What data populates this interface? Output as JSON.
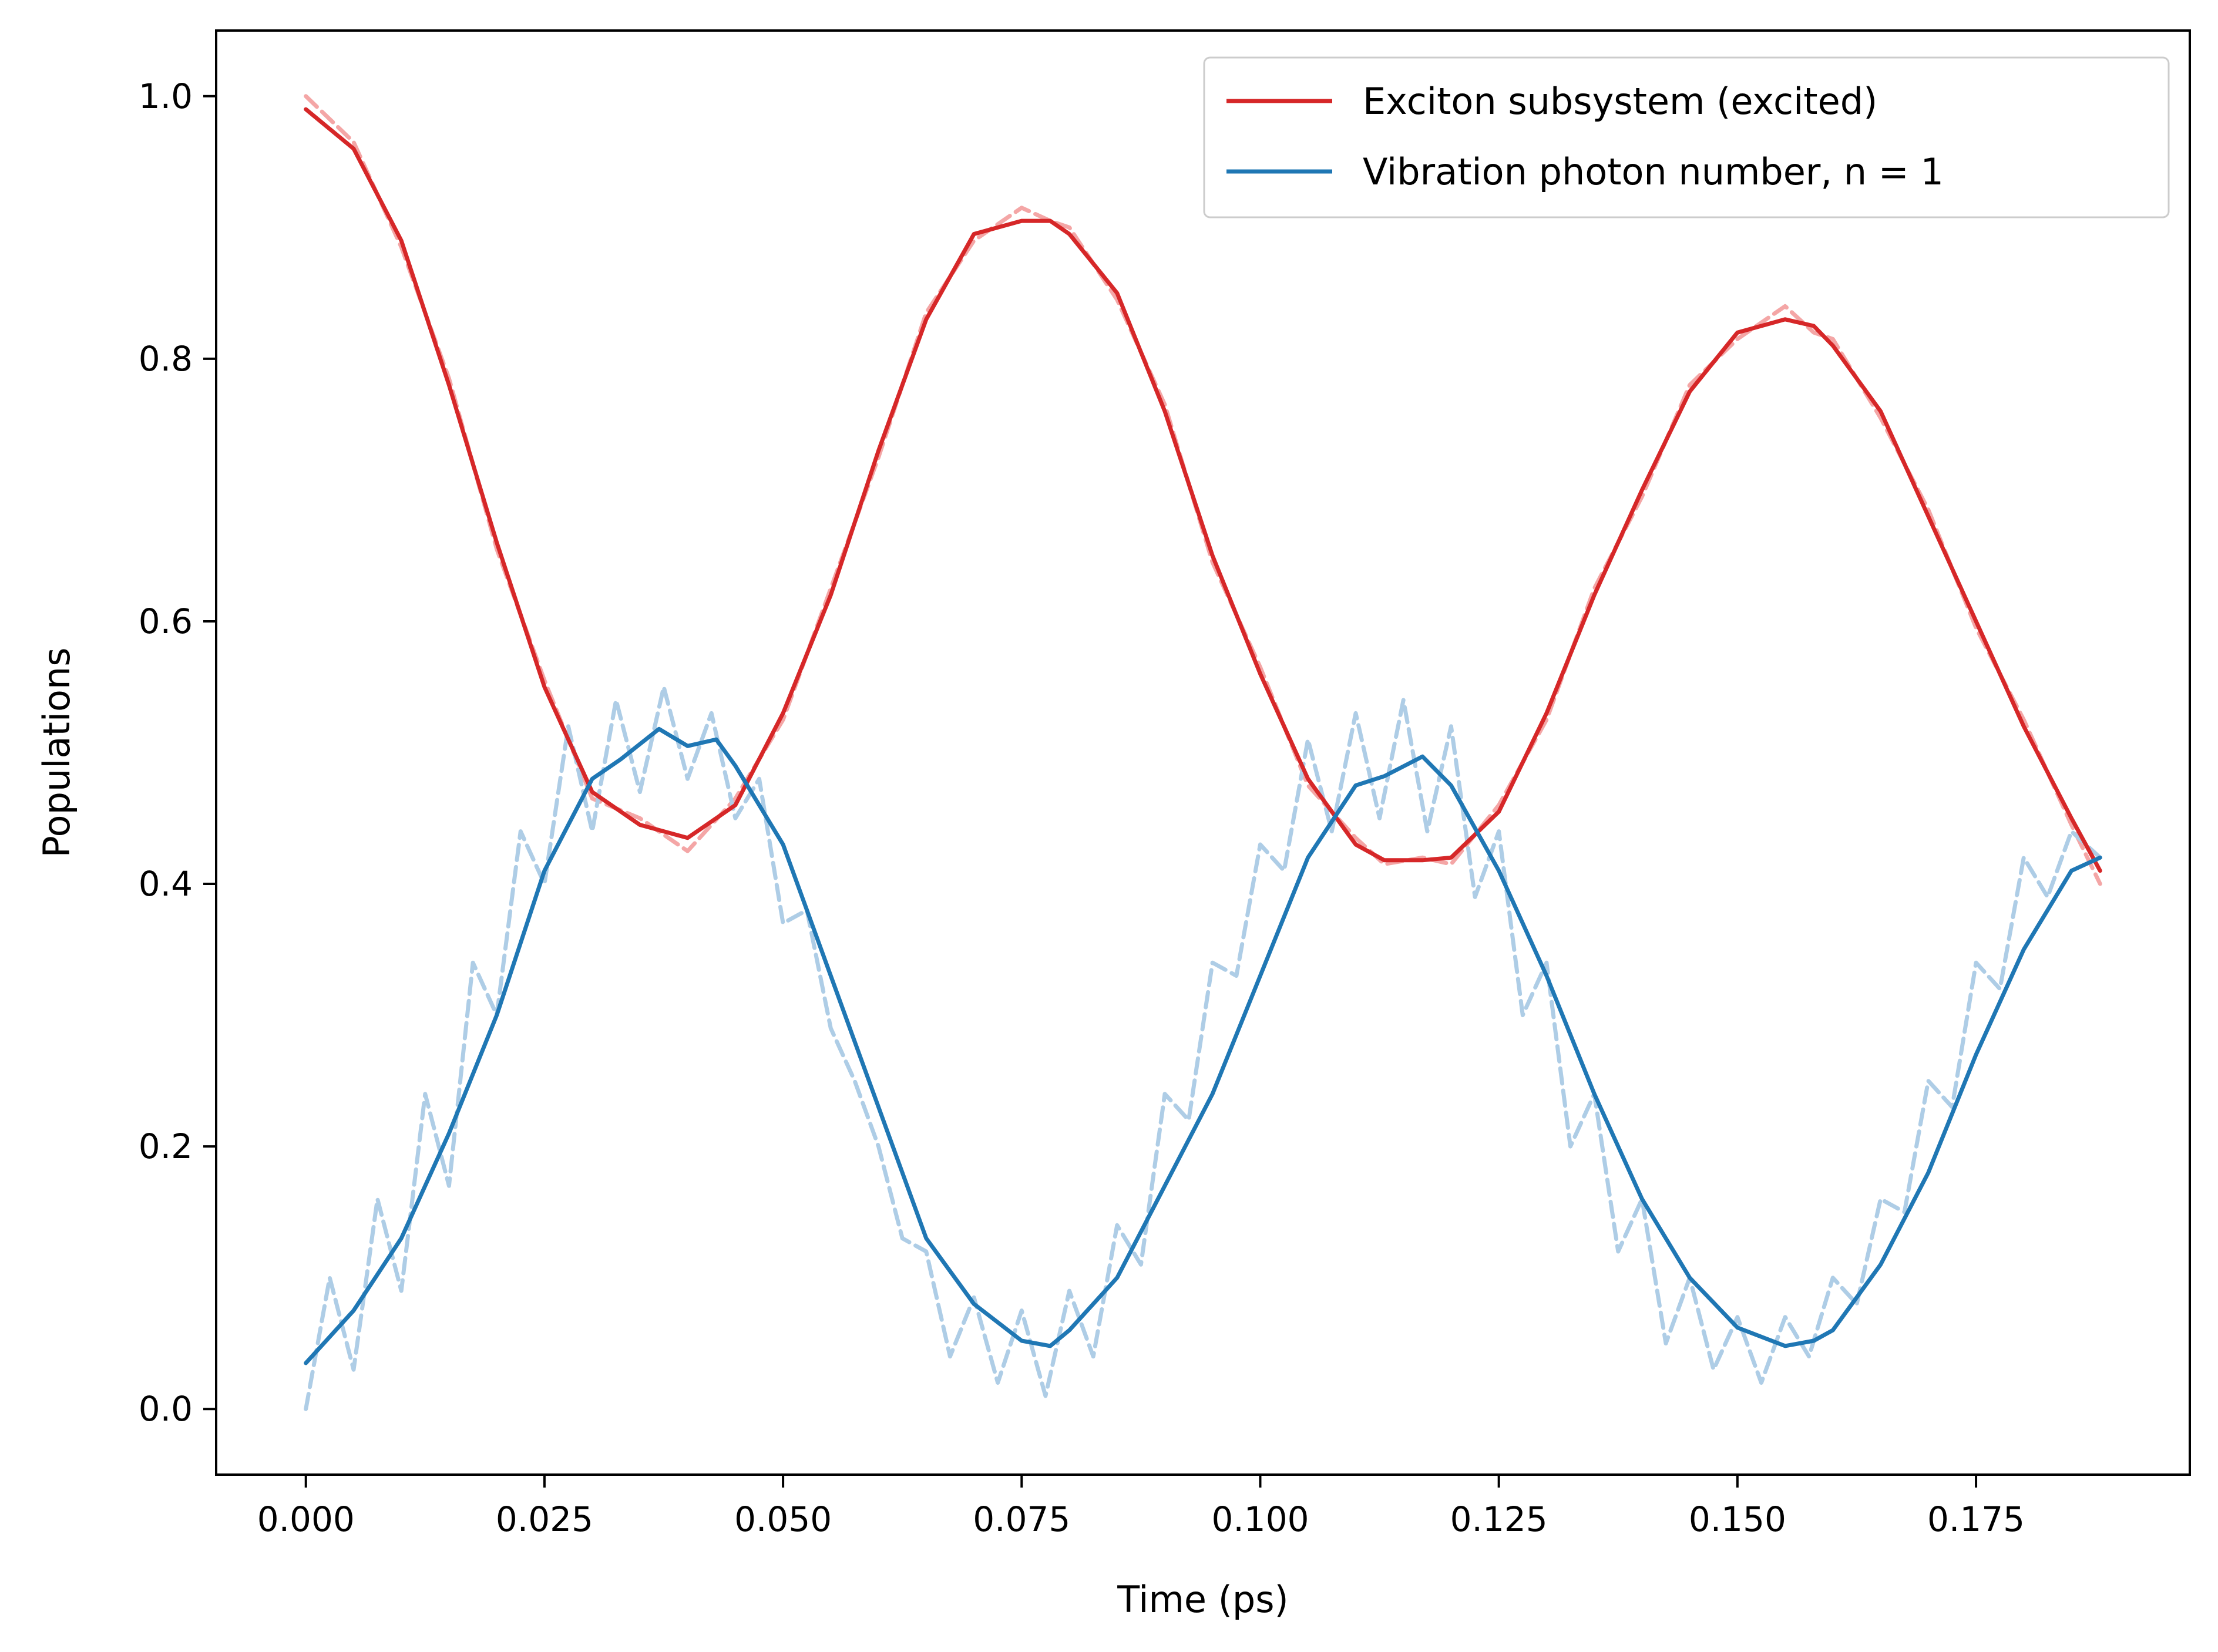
{
  "chart_data": {
    "type": "line",
    "title": "",
    "xlabel": "Time (ps)",
    "ylabel": "Populations",
    "xlim": [
      -0.0094,
      0.1974
    ],
    "ylim": [
      -0.05,
      1.05
    ],
    "xticks": [
      0.0,
      0.025,
      0.05,
      0.075,
      0.1,
      0.125,
      0.15,
      0.175
    ],
    "xtick_labels": [
      "0.000",
      "0.025",
      "0.050",
      "0.075",
      "0.100",
      "0.125",
      "0.150",
      "0.175"
    ],
    "yticks": [
      0.0,
      0.2,
      0.4,
      0.6,
      0.8,
      1.0
    ],
    "ytick_labels": [
      "0.0",
      "0.2",
      "0.4",
      "0.6",
      "0.8",
      "1.0"
    ],
    "grid": false,
    "legend_position": "top-right",
    "series": [
      {
        "name": "Exciton subsystem (excited)",
        "color": "#d62728",
        "style": "solid",
        "x": [
          0.0,
          0.005,
          0.01,
          0.015,
          0.02,
          0.025,
          0.03,
          0.035,
          0.04,
          0.045,
          0.05,
          0.055,
          0.06,
          0.065,
          0.07,
          0.075,
          0.078,
          0.08,
          0.085,
          0.09,
          0.095,
          0.1,
          0.105,
          0.11,
          0.113,
          0.117,
          0.12,
          0.125,
          0.13,
          0.135,
          0.14,
          0.145,
          0.15,
          0.155,
          0.158,
          0.16,
          0.165,
          0.17,
          0.175,
          0.18,
          0.185,
          0.188
        ],
        "y": [
          0.99,
          0.96,
          0.89,
          0.78,
          0.66,
          0.55,
          0.47,
          0.445,
          0.435,
          0.46,
          0.53,
          0.62,
          0.73,
          0.83,
          0.895,
          0.905,
          0.905,
          0.895,
          0.85,
          0.76,
          0.65,
          0.56,
          0.48,
          0.43,
          0.418,
          0.418,
          0.42,
          0.455,
          0.53,
          0.62,
          0.7,
          0.775,
          0.82,
          0.83,
          0.825,
          0.81,
          0.76,
          0.68,
          0.6,
          0.52,
          0.45,
          0.41
        ]
      },
      {
        "name": "Vibration photon number, n = 1",
        "color": "#1f77b4",
        "style": "solid",
        "x": [
          0.0,
          0.005,
          0.01,
          0.015,
          0.02,
          0.025,
          0.03,
          0.033,
          0.037,
          0.04,
          0.043,
          0.045,
          0.05,
          0.055,
          0.06,
          0.065,
          0.07,
          0.075,
          0.078,
          0.08,
          0.085,
          0.09,
          0.095,
          0.1,
          0.105,
          0.11,
          0.113,
          0.117,
          0.12,
          0.125,
          0.13,
          0.135,
          0.14,
          0.145,
          0.15,
          0.155,
          0.158,
          0.16,
          0.165,
          0.17,
          0.175,
          0.18,
          0.185,
          0.188
        ],
        "y": [
          0.035,
          0.075,
          0.13,
          0.21,
          0.3,
          0.41,
          0.48,
          0.495,
          0.518,
          0.505,
          0.51,
          0.49,
          0.43,
          0.33,
          0.23,
          0.13,
          0.08,
          0.052,
          0.048,
          0.06,
          0.1,
          0.17,
          0.24,
          0.33,
          0.42,
          0.475,
          0.482,
          0.497,
          0.475,
          0.41,
          0.33,
          0.24,
          0.16,
          0.1,
          0.062,
          0.048,
          0.052,
          0.06,
          0.11,
          0.18,
          0.27,
          0.35,
          0.41,
          0.42
        ]
      },
      {
        "name": "",
        "color": "#f4a6a6",
        "style": "dashed",
        "x": [
          0.0,
          0.005,
          0.01,
          0.015,
          0.02,
          0.025,
          0.03,
          0.035,
          0.04,
          0.045,
          0.05,
          0.055,
          0.06,
          0.065,
          0.07,
          0.075,
          0.078,
          0.08,
          0.085,
          0.09,
          0.095,
          0.1,
          0.105,
          0.11,
          0.113,
          0.117,
          0.12,
          0.125,
          0.13,
          0.135,
          0.14,
          0.145,
          0.15,
          0.155,
          0.158,
          0.16,
          0.165,
          0.17,
          0.175,
          0.18,
          0.185,
          0.188
        ],
        "y": [
          1.0,
          0.965,
          0.885,
          0.785,
          0.655,
          0.555,
          0.465,
          0.45,
          0.425,
          0.465,
          0.525,
          0.625,
          0.725,
          0.835,
          0.89,
          0.915,
          0.905,
          0.9,
          0.845,
          0.765,
          0.645,
          0.565,
          0.475,
          0.435,
          0.415,
          0.42,
          0.415,
          0.46,
          0.525,
          0.625,
          0.695,
          0.78,
          0.815,
          0.84,
          0.82,
          0.815,
          0.755,
          0.685,
          0.595,
          0.525,
          0.445,
          0.4
        ]
      },
      {
        "name": "",
        "color": "#aecde6",
        "style": "dashed",
        "x": [
          0.0,
          0.0025,
          0.005,
          0.0075,
          0.01,
          0.0125,
          0.015,
          0.0175,
          0.02,
          0.0225,
          0.025,
          0.0275,
          0.03,
          0.0325,
          0.035,
          0.0375,
          0.04,
          0.0425,
          0.045,
          0.0475,
          0.05,
          0.0525,
          0.055,
          0.0575,
          0.06,
          0.0625,
          0.065,
          0.0675,
          0.07,
          0.0725,
          0.075,
          0.0775,
          0.08,
          0.0825,
          0.085,
          0.0875,
          0.09,
          0.0925,
          0.095,
          0.0975,
          0.1,
          0.1025,
          0.105,
          0.1075,
          0.11,
          0.1125,
          0.115,
          0.1175,
          0.12,
          0.1225,
          0.125,
          0.1275,
          0.13,
          0.1325,
          0.135,
          0.1375,
          0.14,
          0.1425,
          0.145,
          0.1475,
          0.15,
          0.1525,
          0.155,
          0.1575,
          0.16,
          0.1625,
          0.165,
          0.1675,
          0.17,
          0.1725,
          0.175,
          0.1775,
          0.18,
          0.1825,
          0.185,
          0.188
        ],
        "y": [
          0.0,
          0.1,
          0.03,
          0.16,
          0.09,
          0.24,
          0.17,
          0.34,
          0.3,
          0.44,
          0.4,
          0.52,
          0.44,
          0.54,
          0.47,
          0.55,
          0.48,
          0.53,
          0.45,
          0.48,
          0.37,
          0.38,
          0.29,
          0.25,
          0.2,
          0.13,
          0.12,
          0.04,
          0.085,
          0.02,
          0.075,
          0.01,
          0.09,
          0.04,
          0.14,
          0.11,
          0.24,
          0.22,
          0.34,
          0.33,
          0.43,
          0.41,
          0.51,
          0.44,
          0.53,
          0.45,
          0.54,
          0.44,
          0.52,
          0.39,
          0.44,
          0.3,
          0.34,
          0.2,
          0.24,
          0.12,
          0.16,
          0.05,
          0.1,
          0.03,
          0.07,
          0.02,
          0.07,
          0.04,
          0.1,
          0.08,
          0.16,
          0.15,
          0.25,
          0.23,
          0.34,
          0.32,
          0.42,
          0.39,
          0.44,
          0.42
        ]
      }
    ]
  }
}
